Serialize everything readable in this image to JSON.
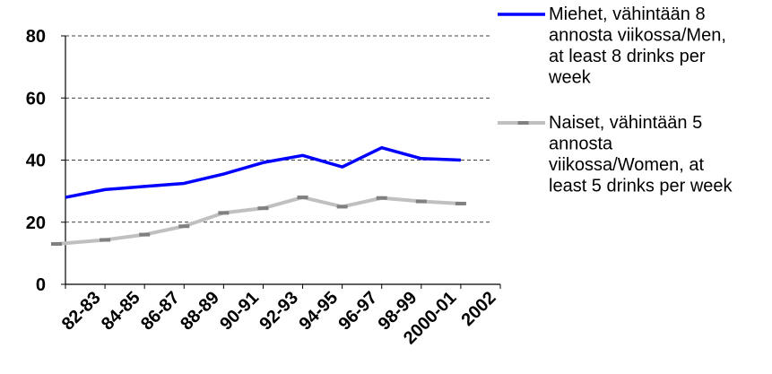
{
  "chart_data": {
    "type": "line",
    "categories": [
      "82-83",
      "84-85",
      "86-87",
      "88-89",
      "90-91",
      "92-93",
      "94-95",
      "96-97",
      "98-99",
      "2000-01",
      "2002"
    ],
    "ylim": [
      0,
      80
    ],
    "yticks": [
      "0",
      "20",
      "40",
      "60",
      "80"
    ],
    "grid": true,
    "legend_position": "right",
    "series": [
      {
        "name": "Miehet, vähintään 8 annosta viikossa/Men, at least 8 drinks per week",
        "legend_lines": [
          "Miehet, vähintään 8",
          "annosta viikossa/Men,",
          "at least 8 drinks per",
          "week"
        ],
        "color": "#0000ff",
        "marker": "none",
        "values": [
          28,
          30.5,
          31.5,
          32.5,
          35.5,
          39.2,
          41.5,
          37.8,
          44,
          40.5,
          40
        ]
      },
      {
        "name": "Naiset, vähintään 5 annosta viikossa/Women, at least 5 drinks per week",
        "legend_lines": [
          "Naiset, vähintään 5",
          "annosta",
          "viikossa/Women, at",
          "least 5 drinks per week"
        ],
        "color": "#c0c0c0",
        "marker_color": "#808080",
        "marker": "dash",
        "values": [
          13,
          14.3,
          16,
          18.7,
          23,
          24.5,
          28,
          25,
          27.8,
          26.7,
          26
        ]
      }
    ]
  }
}
